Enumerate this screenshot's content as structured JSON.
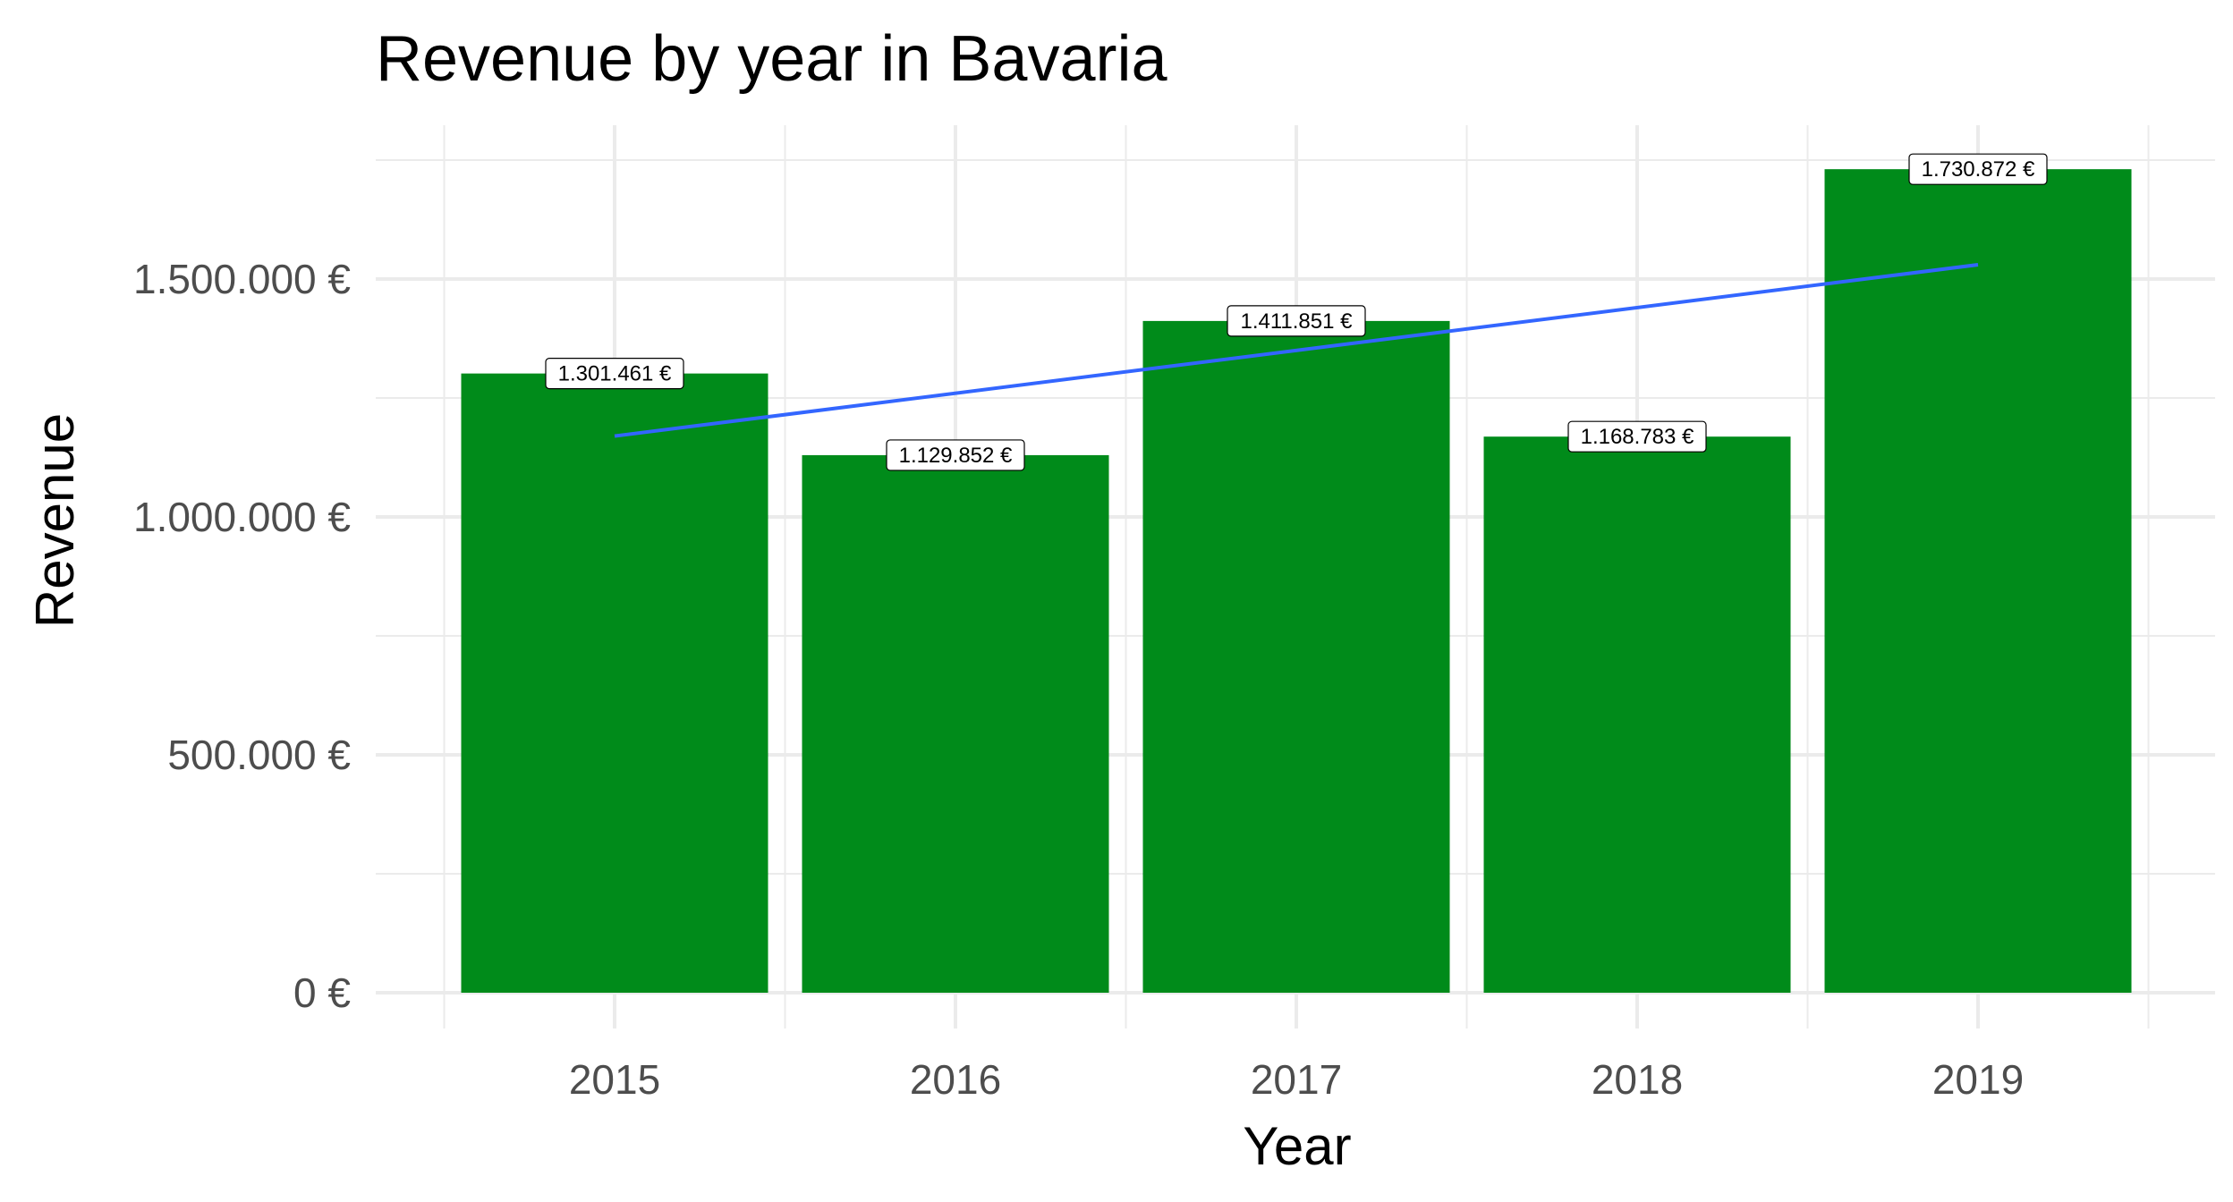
{
  "chart_data": {
    "type": "bar",
    "title": "Revenue by year in Bavaria",
    "xlabel": "Year",
    "ylabel": "Revenue",
    "categories": [
      "2015",
      "2016",
      "2017",
      "2018",
      "2019"
    ],
    "values": [
      1301461,
      1129852,
      1411851,
      1168783,
      1730872
    ],
    "data_labels": [
      "1.301.461 €",
      "1.129.852 €",
      "1.411.851 €",
      "1.168.783 €",
      "1.730.872 €"
    ],
    "ylim": [
      0,
      1800000
    ],
    "yticks": [
      {
        "value": 0,
        "label": "0 €"
      },
      {
        "value": 500000,
        "label": "500.000 €"
      },
      {
        "value": 1000000,
        "label": "1.000.000 €"
      },
      {
        "value": 1500000,
        "label": "1.500.000 €"
      }
    ],
    "trend_line": {
      "start": {
        "x": "2015",
        "y": 1170000
      },
      "end": {
        "x": "2019",
        "y": 1530000
      }
    },
    "bar_color": "#008B1A",
    "trend_color": "#3366FF",
    "grid": true,
    "legend": "none"
  }
}
